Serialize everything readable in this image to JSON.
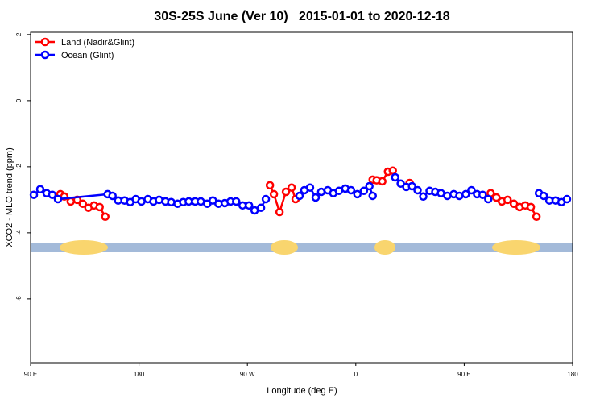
{
  "chart_data": {
    "type": "line",
    "title": "30S-25S June (Ver 10)   2015-01-01 to 2020-12-18",
    "x_label": "Longitude (deg E)",
    "y_label": "XCO2 - MLO trend (ppm)",
    "xlim": [
      90,
      540
    ],
    "xticks": [
      {
        "value": 90,
        "label": "90 E"
      },
      180,
      {
        "value": 270,
        "label": "90 W"
      },
      {
        "value": 360,
        "label": "0"
      },
      {
        "value": 450,
        "label": "90 E"
      },
      {
        "value": 540,
        "label": "180"
      }
    ],
    "ylim": [
      -7.93,
      2.07
    ],
    "yticks": [
      2,
      0,
      -2,
      -4,
      -6
    ],
    "legend": "topleft",
    "series": [
      {
        "name": "Land (Nadir&Glint)",
        "color": "#ff0000",
        "x": [
          114.7,
          118,
          123.3,
          128.7,
          133.3,
          138,
          142.7,
          147.3,
          152,
          null,
          288.7,
          292,
          296.7,
          302,
          306.7,
          310,
          null,
          374,
          377.3,
          382,
          386.7,
          390.7,
          null,
          404.7,
          null,
          472,
          476.7,
          481.3,
          486,
          491.3,
          496,
          500.7,
          505.3,
          510
        ],
        "values": [
          -2.83,
          -2.9,
          -3.05,
          -3.0,
          -3.12,
          -3.24,
          -3.17,
          -3.22,
          -3.51,
          null,
          -2.56,
          -2.83,
          -3.37,
          -2.76,
          -2.63,
          -2.98,
          null,
          -2.39,
          -2.41,
          -2.44,
          -2.15,
          -2.12,
          null,
          -2.49,
          null,
          -2.8,
          -2.93,
          -3.05,
          -3.0,
          -3.12,
          -3.22,
          -3.17,
          -3.22,
          -3.51
        ]
      },
      {
        "name": "Ocean (Glint)",
        "color": "#0000ff",
        "x": [
          92.7,
          98,
          103.3,
          108,
          112.7,
          154,
          158,
          162.7,
          168,
          172.7,
          177.3,
          182,
          187.3,
          192,
          196.7,
          202,
          206.7,
          212,
          216.7,
          221.3,
          226.7,
          231.3,
          236.7,
          241.3,
          246,
          251.3,
          256,
          260.7,
          266,
          271.3,
          276,
          281.3,
          285.3,
          null,
          313.3,
          317.3,
          322,
          326.7,
          331.3,
          336.7,
          341.3,
          346,
          351.3,
          356,
          361.3,
          366.7,
          371.3,
          374,
          null,
          392.7,
          397.3,
          402,
          406.7,
          411.3,
          416,
          421.3,
          426,
          430.7,
          436,
          441.3,
          446,
          451.3,
          456,
          460.7,
          465.3,
          470,
          null,
          512,
          516,
          520.7,
          526,
          530.7,
          535.3
        ],
        "values": [
          -2.85,
          -2.68,
          -2.8,
          -2.85,
          -2.98,
          -2.83,
          -2.88,
          -3.02,
          -3.02,
          -3.07,
          -2.98,
          -3.05,
          -2.98,
          -3.05,
          -3.0,
          -3.05,
          -3.07,
          -3.12,
          -3.07,
          -3.05,
          -3.05,
          -3.05,
          -3.12,
          -3.02,
          -3.12,
          -3.1,
          -3.05,
          -3.05,
          -3.17,
          -3.17,
          -3.32,
          -3.24,
          -2.98,
          null,
          -2.88,
          -2.71,
          -2.63,
          -2.93,
          -2.76,
          -2.71,
          -2.8,
          -2.73,
          -2.66,
          -2.71,
          -2.83,
          -2.73,
          -2.59,
          -2.88,
          null,
          -2.32,
          -2.51,
          -2.61,
          -2.59,
          -2.71,
          -2.9,
          -2.73,
          -2.76,
          -2.8,
          -2.88,
          -2.83,
          -2.88,
          -2.83,
          -2.71,
          -2.83,
          -2.85,
          -2.98,
          null,
          -2.8,
          -2.88,
          -3.02,
          -3.02,
          -3.07,
          -2.98
        ]
      }
    ]
  }
}
